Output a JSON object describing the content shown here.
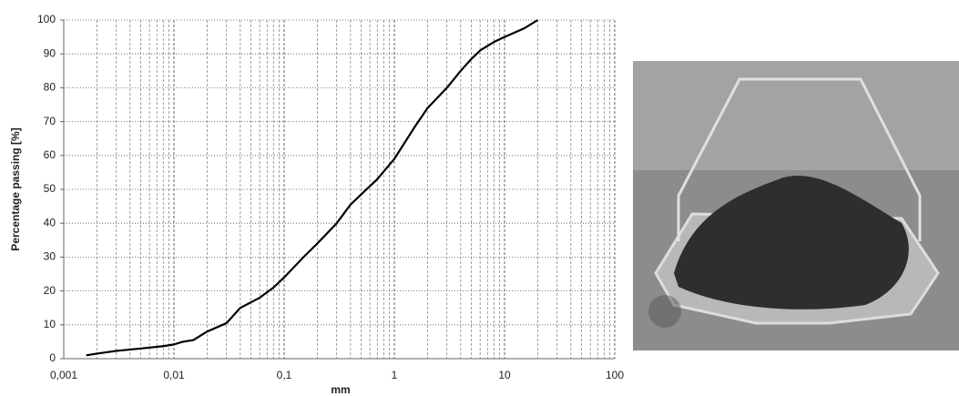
{
  "chart_data": {
    "type": "line",
    "x_label": "mm",
    "y_label": "Percentage passing [%]",
    "x": [
      0.0016,
      0.002,
      0.003,
      0.005,
      0.008,
      0.01,
      0.012,
      0.015,
      0.02,
      0.03,
      0.04,
      0.06,
      0.08,
      0.1,
      0.15,
      0.2,
      0.3,
      0.4,
      0.5,
      0.7,
      1,
      1.5,
      2,
      3,
      4,
      5,
      6,
      8,
      10,
      15,
      20
    ],
    "series": [
      {
        "color": "#000000",
        "values": [
          1,
          1.5,
          2.3,
          3,
          3.7,
          4.2,
          5,
          5.5,
          8,
          10.5,
          15,
          18,
          21,
          24,
          30,
          34,
          40,
          45.5,
          48.5,
          53,
          59,
          68,
          74,
          80,
          85,
          88.5,
          91,
          93.5,
          95,
          97.5,
          100
        ]
      }
    ],
    "x_log": true,
    "xlim": [
      0.001,
      100
    ],
    "xticks": [
      {
        "value": 0.001,
        "label": "0,001"
      },
      {
        "value": 0.01,
        "label": "0,01"
      },
      {
        "value": 0.1,
        "label": "0,1"
      },
      1,
      10,
      100
    ],
    "ylim": [
      0,
      100
    ],
    "yticks": [
      0,
      10,
      20,
      30,
      40,
      50,
      60,
      70,
      80,
      90,
      100
    ],
    "grid": true,
    "minor_grid": true
  }
}
